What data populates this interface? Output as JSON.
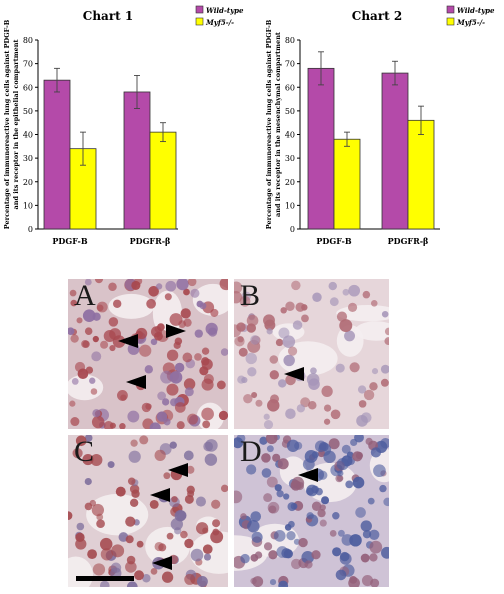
{
  "chart_data": [
    {
      "type": "bar",
      "title": "Chart 1",
      "categories": [
        "PDGF-B",
        "PDGFR-β"
      ],
      "series": [
        {
          "name": "Wild-type",
          "values": [
            63,
            58
          ],
          "errors": [
            5,
            7
          ],
          "color": "#b44aa9"
        },
        {
          "name": "Myf5-/-",
          "values": [
            34,
            41
          ],
          "errors": [
            7,
            4
          ],
          "color": "#ffff00"
        }
      ],
      "ylabel": "Percentage of immunoreactive lung cells against PDGF-B and its receptor in the epithelial compartment",
      "ylim": [
        0,
        80
      ],
      "yticks": [
        "0",
        "10",
        "20",
        "30",
        "40",
        "50",
        "60",
        "70",
        "80"
      ],
      "legend": "top-right"
    },
    {
      "type": "bar",
      "title": "Chart 2",
      "categories": [
        "PDGF-B",
        "PDGFR-β"
      ],
      "series": [
        {
          "name": "Wild-type",
          "values": [
            68,
            66
          ],
          "errors": [
            7,
            5
          ],
          "color": "#b44aa9"
        },
        {
          "name": "Myf5-/-",
          "values": [
            38,
            46
          ],
          "errors": [
            3,
            6
          ],
          "color": "#ffff00"
        }
      ],
      "ylabel": "Percentage of immunoreactive lung cells against PDGF-B and its receptor in the mesenchymal compartment",
      "ylim": [
        0,
        80
      ],
      "yticks": [
        "0",
        "10",
        "20",
        "30",
        "40",
        "50",
        "60",
        "70",
        "80"
      ],
      "legend": "top-right"
    }
  ],
  "panels": [
    {
      "letter": "A",
      "bg": "#d9c3c9",
      "cell": "#a8484f",
      "cell2": "#8e6fa2",
      "density": 0.9
    },
    {
      "letter": "B",
      "bg": "#e6d6da",
      "cell": "#b06a74",
      "cell2": "#a595b8",
      "density": 0.6
    },
    {
      "letter": "C",
      "bg": "#e0cfd4",
      "cell": "#a4494e",
      "cell2": "#7d6d9c",
      "density": 0.7
    },
    {
      "letter": "D",
      "bg": "#cfc3d6",
      "cell": "#4e5d9e",
      "cell2": "#94607a",
      "density": 1.0
    }
  ]
}
